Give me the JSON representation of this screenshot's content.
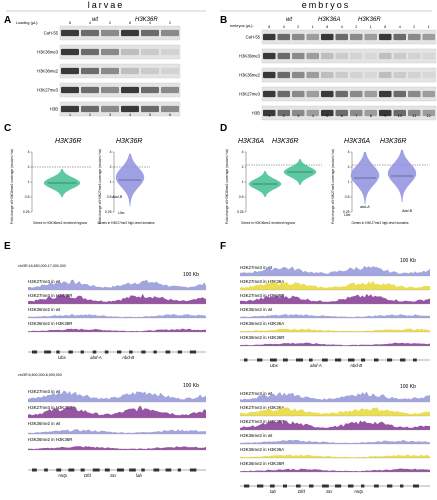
{
  "headers": {
    "left": "larvae",
    "right": "embryos"
  },
  "panelA": {
    "letter": "A",
    "loading": "Loading (µL):",
    "genotypes": [
      "wt",
      "H3K36R"
    ],
    "loads": [
      "8",
      "4",
      "2",
      "8",
      "4",
      "2"
    ],
    "lanes": [
      "1",
      "2",
      "3",
      "4",
      "5",
      "6"
    ],
    "rows": [
      "CaH-55",
      "H3K36me3",
      "H3K36me2",
      "H3K27me3",
      "H3B"
    ]
  },
  "panelB": {
    "letter": "B",
    "loading": "embryos (µL):",
    "genotypes": [
      "wt",
      "H3K36A",
      "H3K36R"
    ],
    "loads": [
      "8",
      "4",
      "2",
      "1",
      "8",
      "4",
      "2",
      "1",
      "8",
      "4",
      "2",
      "1"
    ],
    "lanes": [
      "1",
      "2",
      "3",
      "4",
      "5",
      "6",
      "7",
      "8",
      "9",
      "10",
      "11",
      "12"
    ],
    "rows": [
      "CaH-55",
      "H3K36me3",
      "H3K36me2",
      "H3K27me3",
      "H3B"
    ]
  },
  "panelC": {
    "letter": "C",
    "geno1": "H3K36R",
    "geno2": "H3K36R",
    "ylabel1": "Fold change of H3K36me2 coverage (mutant / wt)",
    "ylabel2": "Fold change of H3K27me3 coverage (mutant / wt)",
    "xlabel1": "Genes in H3K36me2 enriched regions",
    "xlabel2": "Genes in H3K27me3 high-level domains",
    "ticks": [
      "4",
      "2",
      "1",
      "0.5",
      "0.25"
    ],
    "genes": [
      "Abd-B",
      "Ubx"
    ]
  },
  "panelD": {
    "letter": "D",
    "geno1": "H3K36A",
    "geno2": "H3K36R",
    "geno3": "H3K36A",
    "geno4": "H3K36R",
    "ylabel1": "Fold change of H3K36me2 coverage (mutant / wt)",
    "ylabel2": "Fold change of H3K27me3 coverage (mutant / wt)",
    "xlabel1": "Genes in H3K36me2 enriched regions",
    "xlabel2": "Genes in H3K27me3 high-level domains",
    "ticks": [
      "4",
      "2",
      "1",
      "0.5",
      "0.25"
    ],
    "genes": [
      "Ubx",
      "abd-A",
      "Abd-B"
    ]
  },
  "panelE": {
    "letter": "E",
    "coord1": "chr3R:16,650,000-17,000,000",
    "coord2": "chr3R:6,600,000-6,900,000",
    "scale": "100 Kb",
    "tracks1": [
      "H3K27me3 in wt",
      "H3K27me3 in H3K36R",
      "H3K36me2 in wt",
      "H3K36me2 in H3K36R"
    ],
    "tracks2": [
      "H3K27me3 in wt",
      "H3K27me3 in H3K36R",
      "H3K36me2 in wt",
      "H3K36me2 in H3K36R"
    ],
    "genes1": [
      "Ubx",
      "abd-A",
      "Abd-B"
    ],
    "genes2": [
      "Antp",
      "Dfd",
      "Scr",
      "lab"
    ]
  },
  "panelF": {
    "letter": "F",
    "scale": "100 Kb",
    "tracks1": [
      "H3K27me3 in wt",
      "H3K27me3 in H3K36A",
      "H3K27me3 in H3K36R",
      "H3K36me2 in wt",
      "H3K36me2 in H3K36A",
      "H3K36me2 in H3K36R"
    ],
    "tracks2": [
      "H3K27me3 in wt",
      "H3K27me3 in H3K36A",
      "H3K27me3 in H3K36R",
      "H3K36me2 in wt",
      "H3K36me2 in H3K36A",
      "H3K36me2 in H3K36R"
    ],
    "genes1": [
      "Ubx",
      "abd-A",
      "Abd-B"
    ],
    "genes2": [
      "lab",
      "Dfd",
      "Scr",
      "Antp"
    ]
  },
  "colors": {
    "wt": "#8c8fd6",
    "K36R": "#7b2a8c",
    "K36A": "#e6d62a",
    "violin": "#3fbf8f",
    "violinBlue": "#8f8fe0"
  }
}
